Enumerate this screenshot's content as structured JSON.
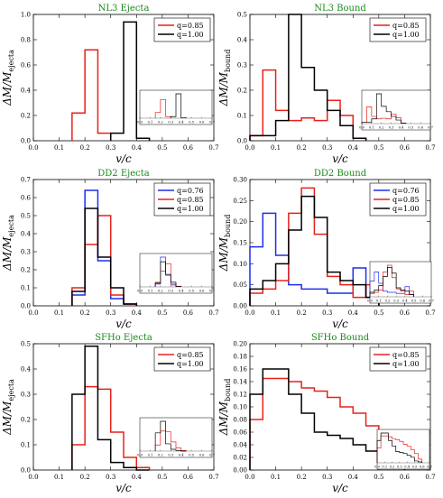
{
  "colors": {
    "q0.76": "#1f2ee8",
    "q0.85": "#e8201a",
    "q1.00": "#000000",
    "title": "#1a8a1a"
  },
  "chart_data": [
    {
      "type": "histogram",
      "title": "NL3 Ejecta",
      "xlabel": "v/c",
      "ylabel": "ΔM/M_ejecta",
      "ylabel_sub": "ejecta",
      "xlim": [
        0,
        0.7
      ],
      "ylim": [
        0,
        1.0
      ],
      "xstep": 0.1,
      "ystep": 0.2,
      "ydec": 1,
      "legend_position": "top-right",
      "series": [
        {
          "name": "q=0.85",
          "color": "#e8201a",
          "edges": [
            0.15,
            0.2,
            0.25,
            0.3
          ],
          "values": [
            0.22,
            0.72,
            0.06
          ]
        },
        {
          "name": "q=1.00",
          "color": "#000000",
          "edges": [
            0.3,
            0.35,
            0.4,
            0.45
          ],
          "values": [
            0.06,
            0.94,
            0.02
          ]
        }
      ]
    },
    {
      "type": "histogram",
      "title": "NL3 Bound",
      "xlabel": "v/c",
      "ylabel": "ΔM/M_bound",
      "ylabel_sub": "bound",
      "xlim": [
        0,
        0.7
      ],
      "ylim": [
        0,
        0.5
      ],
      "xstep": 0.1,
      "ystep": 0.1,
      "ydec": 1,
      "legend_position": "top-right",
      "series": [
        {
          "name": "q=0.85",
          "color": "#e8201a",
          "edges": [
            0,
            0.05,
            0.1,
            0.15,
            0.2,
            0.25,
            0.3,
            0.35,
            0.4,
            0.45
          ],
          "values": [
            0.02,
            0.28,
            0.12,
            0.08,
            0.09,
            0.08,
            0.16,
            0.1,
            0.01
          ]
        },
        {
          "name": "q=1.00",
          "color": "#000000",
          "edges": [
            0,
            0.05,
            0.1,
            0.15,
            0.2,
            0.25,
            0.3,
            0.35,
            0.4,
            0.45
          ],
          "values": [
            0.02,
            0.02,
            0.08,
            0.5,
            0.29,
            0.2,
            0.12,
            0.06,
            0.01
          ]
        }
      ]
    },
    {
      "type": "histogram",
      "title": "DD2 Ejecta",
      "xlabel": "v/c",
      "ylabel": "ΔM/M_ejecta",
      "ylabel_sub": "ejecta",
      "xlim": [
        0,
        0.7
      ],
      "ylim": [
        0,
        0.7
      ],
      "xstep": 0.1,
      "ystep": 0.1,
      "ydec": 1,
      "legend_position": "top-right",
      "series": [
        {
          "name": "q=0.76",
          "color": "#1f2ee8",
          "edges": [
            0.15,
            0.2,
            0.25,
            0.3,
            0.35,
            0.4
          ],
          "values": [
            0.06,
            0.64,
            0.25,
            0.04,
            0.01
          ]
        },
        {
          "name": "q=0.85",
          "color": "#e8201a",
          "edges": [
            0.15,
            0.2,
            0.25,
            0.3,
            0.35,
            0.4
          ],
          "values": [
            0.1,
            0.34,
            0.5,
            0.06,
            0.01
          ]
        },
        {
          "name": "q=1.00",
          "color": "#000000",
          "edges": [
            0.15,
            0.2,
            0.25,
            0.3,
            0.35,
            0.4
          ],
          "values": [
            0.08,
            0.54,
            0.27,
            0.1,
            0.01
          ]
        }
      ]
    },
    {
      "type": "histogram",
      "title": "DD2 Bound",
      "xlabel": "v/c",
      "ylabel": "ΔM/M_bound",
      "ylabel_sub": "bound",
      "xlim": [
        0,
        0.7
      ],
      "ylim": [
        0,
        0.3
      ],
      "xstep": 0.1,
      "ystep": 0.05,
      "ydec": 2,
      "legend_position": "top-right",
      "series": [
        {
          "name": "q=0.76",
          "color": "#1f2ee8",
          "edges": [
            0,
            0.05,
            0.1,
            0.15,
            0.2,
            0.25,
            0.3,
            0.35,
            0.4,
            0.45,
            0.5
          ],
          "values": [
            0.14,
            0.22,
            0.12,
            0.05,
            0.04,
            0.04,
            0.03,
            0.03,
            0.09,
            0.02
          ]
        },
        {
          "name": "q=0.85",
          "color": "#e8201a",
          "edges": [
            0,
            0.05,
            0.1,
            0.15,
            0.2,
            0.25,
            0.3,
            0.35,
            0.4,
            0.45,
            0.5
          ],
          "values": [
            0.03,
            0.04,
            0.06,
            0.22,
            0.28,
            0.17,
            0.07,
            0.05,
            0.02,
            0.05
          ]
        },
        {
          "name": "q=1.00",
          "color": "#000000",
          "edges": [
            0,
            0.05,
            0.1,
            0.15,
            0.2,
            0.25,
            0.3,
            0.35,
            0.4,
            0.45,
            0.5
          ],
          "values": [
            0.04,
            0.06,
            0.1,
            0.18,
            0.26,
            0.21,
            0.08,
            0.06,
            0.05,
            0.02
          ]
        }
      ]
    },
    {
      "type": "histogram",
      "title": "SFHo Ejecta",
      "xlabel": "v/c",
      "ylabel": "ΔM/M_ejecta",
      "ylabel_sub": "ejecta",
      "xlim": [
        0,
        0.7
      ],
      "ylim": [
        0,
        0.5
      ],
      "xstep": 0.1,
      "ystep": 0.1,
      "ydec": 1,
      "legend_position": "top-right",
      "series": [
        {
          "name": "q=0.85",
          "color": "#e8201a",
          "edges": [
            0.15,
            0.2,
            0.25,
            0.3,
            0.35,
            0.4,
            0.45
          ],
          "values": [
            0.1,
            0.33,
            0.32,
            0.15,
            0.05,
            0.01
          ]
        },
        {
          "name": "q=1.00",
          "color": "#000000",
          "edges": [
            0.15,
            0.2,
            0.25,
            0.3,
            0.35,
            0.4,
            0.45
          ],
          "values": [
            0.3,
            0.49,
            0.12,
            0.03,
            0.01,
            0.0
          ]
        }
      ]
    },
    {
      "type": "histogram",
      "title": "SFHo Bound",
      "xlabel": "v/c",
      "ylabel": "ΔM/M_bound",
      "ylabel_sub": "bound",
      "xlim": [
        0,
        0.7
      ],
      "ylim": [
        0,
        0.2
      ],
      "xstep": 0.1,
      "ystep": 0.02,
      "ydec": 2,
      "legend_position": "top-right",
      "series": [
        {
          "name": "q=0.85",
          "color": "#e8201a",
          "edges": [
            0,
            0.05,
            0.1,
            0.15,
            0.2,
            0.25,
            0.3,
            0.35,
            0.4,
            0.45,
            0.5,
            0.55,
            0.6
          ],
          "values": [
            0.08,
            0.145,
            0.145,
            0.14,
            0.13,
            0.125,
            0.115,
            0.1,
            0.09,
            0.07,
            0.05,
            0.02
          ]
        },
        {
          "name": "q=1.00",
          "color": "#000000",
          "edges": [
            0,
            0.05,
            0.1,
            0.15,
            0.2,
            0.25,
            0.3,
            0.35,
            0.4,
            0.45,
            0.5,
            0.55,
            0.6
          ],
          "values": [
            0.12,
            0.16,
            0.16,
            0.12,
            0.09,
            0.06,
            0.055,
            0.05,
            0.04,
            0.03,
            0.01,
            0.005
          ]
        }
      ]
    }
  ]
}
